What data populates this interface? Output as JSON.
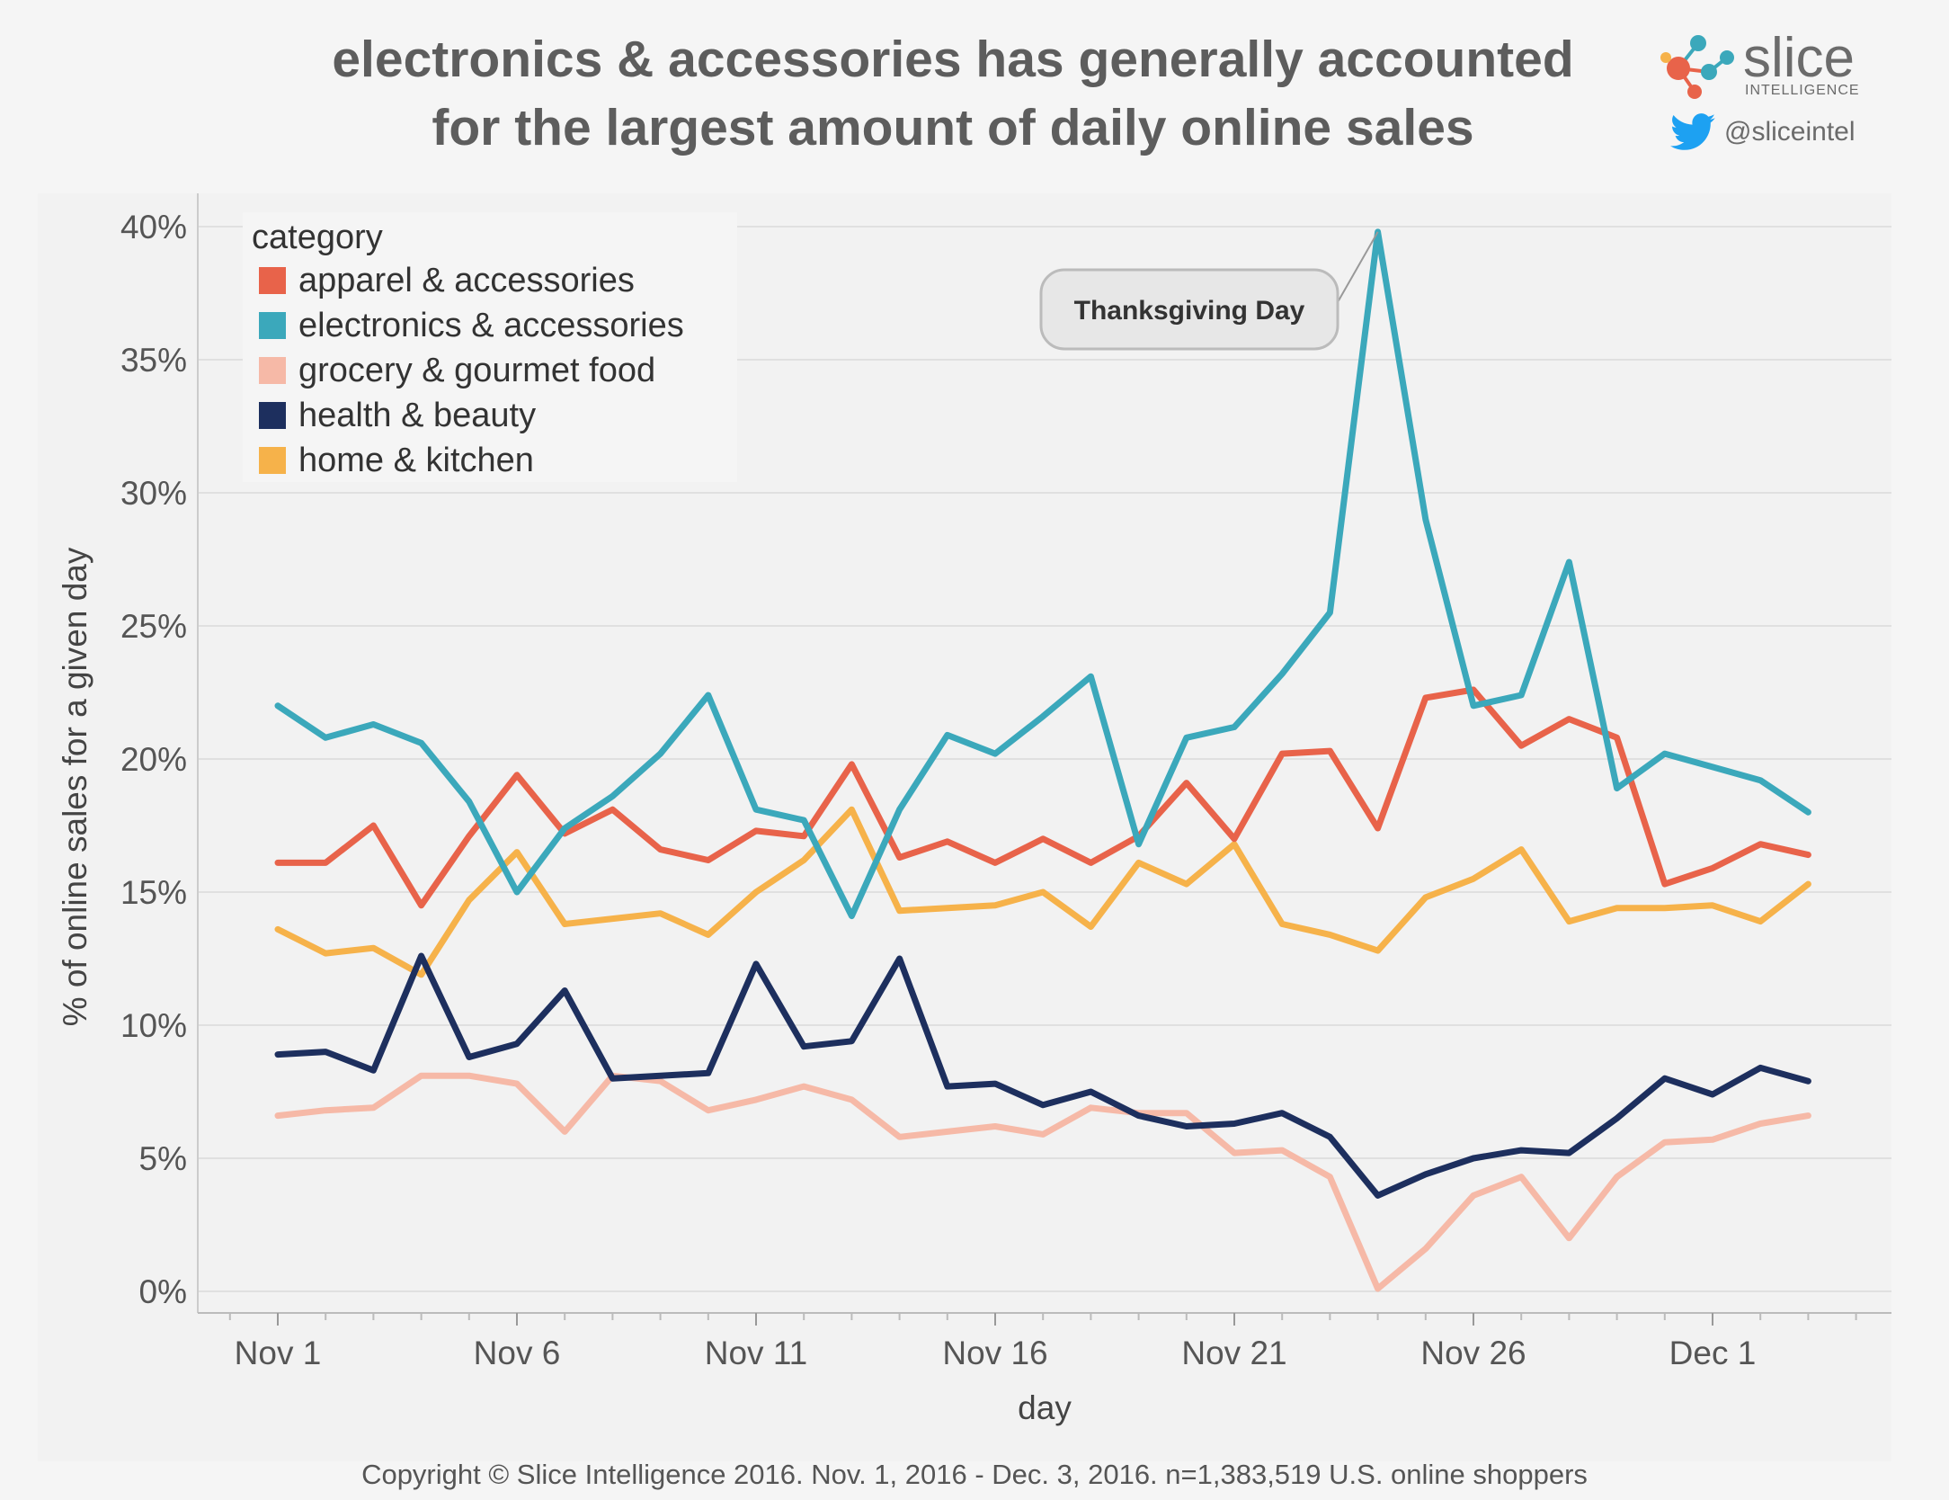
{
  "header": {
    "title_line1": "electronics & accessories has generally accounted",
    "title_line2": "for the largest amount of daily online sales",
    "logo_word": "slice",
    "logo_sub": "INTELLIGENCE",
    "twitter_handle": "@sliceintel"
  },
  "footer": {
    "copyright": "Copyright © Slice Intelligence 2016. Nov. 1, 2016 - Dec. 3, 2016. n=1,383,519 U.S. online shoppers"
  },
  "colors": {
    "apparel": "#e8634a",
    "electronics": "#3ba8bb",
    "grocery": "#f6b9a7",
    "health": "#1d2f5e",
    "home": "#f6b24a",
    "grid": "#e0e0e0",
    "text": "#555555"
  },
  "chart_data": {
    "type": "line",
    "title": "electronics & accessories has generally accounted for the largest amount of daily online sales",
    "xlabel": "day",
    "ylabel": "% of online sales for a given day",
    "ylim": [
      0,
      40
    ],
    "yticks": [
      0,
      5,
      10,
      15,
      20,
      25,
      30,
      35,
      40
    ],
    "ytick_labels": [
      "0%",
      "5%",
      "10%",
      "15%",
      "20%",
      "25%",
      "30%",
      "35%",
      "40%"
    ],
    "x_tick_indices": [
      0,
      5,
      10,
      15,
      20,
      25,
      30
    ],
    "x_tick_labels": [
      "Nov 1",
      "Nov 6",
      "Nov 11",
      "Nov 16",
      "Nov 21",
      "Nov 26",
      "Dec 1"
    ],
    "x": [
      "Nov 1",
      "Nov 2",
      "Nov 3",
      "Nov 4",
      "Nov 5",
      "Nov 6",
      "Nov 7",
      "Nov 8",
      "Nov 9",
      "Nov 10",
      "Nov 11",
      "Nov 12",
      "Nov 13",
      "Nov 14",
      "Nov 15",
      "Nov 16",
      "Nov 17",
      "Nov 18",
      "Nov 19",
      "Nov 20",
      "Nov 21",
      "Nov 22",
      "Nov 23",
      "Nov 24",
      "Nov 25",
      "Nov 26",
      "Nov 27",
      "Nov 28",
      "Nov 29",
      "Nov 30",
      "Dec 1",
      "Dec 2",
      "Dec 3"
    ],
    "legend_title": "category",
    "legend_position": "top-left",
    "series": [
      {
        "key": "apparel",
        "name": "apparel & accessories",
        "values": [
          16.1,
          16.1,
          17.5,
          14.5,
          17.1,
          19.4,
          17.2,
          18.1,
          16.6,
          16.2,
          17.3,
          17.1,
          19.8,
          16.3,
          16.9,
          16.1,
          17.0,
          16.1,
          17.1,
          19.1,
          17.0,
          20.2,
          20.3,
          17.4,
          22.3,
          22.6,
          20.5,
          21.5,
          20.8,
          15.3,
          15.9,
          16.8,
          16.4
        ]
      },
      {
        "key": "electronics",
        "name": "electronics & accessories",
        "values": [
          22.0,
          20.8,
          21.3,
          20.6,
          18.4,
          15.0,
          17.4,
          18.6,
          20.2,
          22.4,
          18.1,
          17.7,
          14.1,
          18.1,
          20.9,
          20.2,
          21.6,
          23.1,
          16.8,
          20.8,
          21.2,
          23.2,
          25.5,
          39.8,
          29.0,
          22.0,
          22.4,
          27.4,
          18.9,
          20.2,
          19.7,
          19.2,
          18.0
        ]
      },
      {
        "key": "grocery",
        "name": "grocery & gourmet food",
        "values": [
          6.6,
          6.8,
          6.9,
          8.1,
          8.1,
          7.8,
          6.0,
          8.1,
          7.9,
          6.8,
          7.2,
          7.7,
          7.2,
          5.8,
          6.0,
          6.2,
          5.9,
          6.9,
          6.7,
          6.7,
          5.2,
          5.3,
          4.3,
          0.1,
          1.6,
          3.6,
          4.3,
          2.0,
          4.3,
          5.6,
          5.7,
          6.3,
          6.6
        ]
      },
      {
        "key": "health",
        "name": "health & beauty",
        "values": [
          8.9,
          9.0,
          8.3,
          12.6,
          8.8,
          9.3,
          11.3,
          8.0,
          8.1,
          8.2,
          12.3,
          9.2,
          9.4,
          12.5,
          7.7,
          7.8,
          7.0,
          7.5,
          6.6,
          6.2,
          6.3,
          6.7,
          5.8,
          3.6,
          4.4,
          5.0,
          5.3,
          5.2,
          6.5,
          8.0,
          7.4,
          8.4,
          7.9
        ]
      },
      {
        "key": "home",
        "name": "home & kitchen",
        "values": [
          13.6,
          12.7,
          12.9,
          11.9,
          14.7,
          16.5,
          13.8,
          14.0,
          14.2,
          13.4,
          15.0,
          16.2,
          18.1,
          14.3,
          14.4,
          14.5,
          15.0,
          13.7,
          16.1,
          15.3,
          16.8,
          13.8,
          13.4,
          12.8,
          14.8,
          15.5,
          16.6,
          13.9,
          14.4,
          14.4,
          14.5,
          13.9,
          15.3
        ]
      }
    ],
    "annotation": {
      "text": "Thanksgiving Day",
      "day_index": 23
    }
  }
}
